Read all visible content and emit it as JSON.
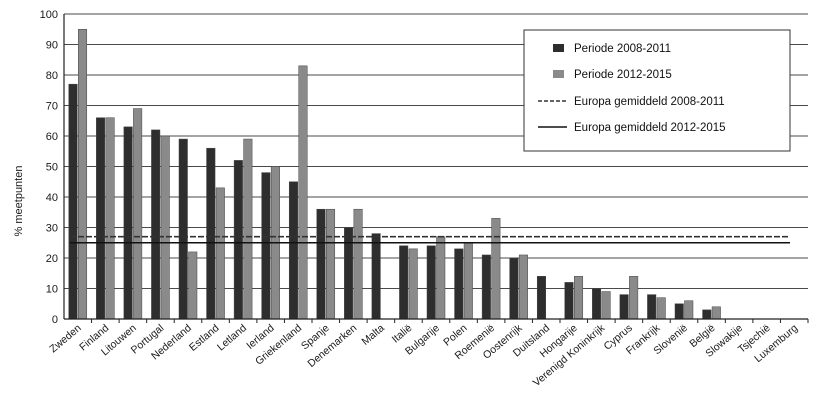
{
  "chart_data": {
    "type": "bar",
    "ylabel": "% meetpunten",
    "ylim": [
      0,
      100
    ],
    "yticks": [
      0,
      10,
      20,
      30,
      40,
      50,
      60,
      70,
      80,
      90,
      100
    ],
    "grid": true,
    "legend_position": "top-right",
    "categories": [
      "Zweden",
      "Finland",
      "Litouwen",
      "Portugal",
      "Nederland",
      "Estland",
      "Letland",
      "Ierland",
      "Griekenland",
      "Spanje",
      "Denemarken",
      "Malta",
      "Italië",
      "Bulgarije",
      "Polen",
      "Roemenië",
      "Oostenrijk",
      "Duitsland",
      "Hongarije",
      "Verenigd Koninkrijk",
      "Cyprus",
      "Frankrijk",
      "Slovenië",
      "België",
      "Slowakije",
      "Tsjechië",
      "Luxemburg"
    ],
    "series": [
      {
        "name": "Periode 2008-2011",
        "color": "#2e2e2e",
        "values": [
          77,
          66,
          63,
          62,
          59,
          56,
          52,
          48,
          45,
          36,
          30,
          28,
          24,
          24,
          23,
          21,
          20,
          14,
          12,
          10,
          8,
          8,
          5,
          3,
          0,
          0,
          0
        ]
      },
      {
        "name": "Periode 2012-2015",
        "color": "#8a8a8a",
        "values": [
          95,
          66,
          69,
          60,
          22,
          43,
          59,
          50,
          83,
          36,
          36,
          0,
          23,
          27,
          25,
          33,
          21,
          0,
          14,
          9,
          14,
          7,
          6,
          4,
          0,
          0,
          0
        ]
      }
    ],
    "reference_lines": [
      {
        "name": "Europa gemiddeld 2008-2011",
        "value": 27,
        "color": "#333333",
        "style": "dashed"
      },
      {
        "name": "Europa gemiddeld 2012-2015",
        "value": 25,
        "color": "#111111",
        "style": "solid"
      }
    ]
  }
}
